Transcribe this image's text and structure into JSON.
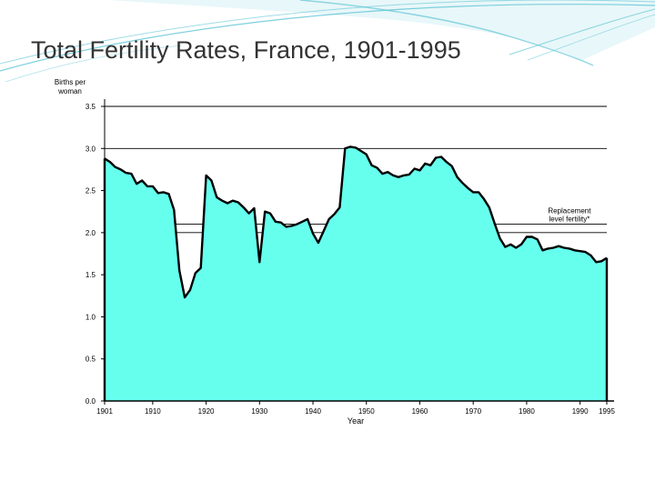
{
  "slide": {
    "title": "Total Fertility Rates, France, 1901-1995",
    "colors": {
      "title": "#333333",
      "swoosh": "#5fc4d6",
      "fill": "#66ffee",
      "line": "#000000"
    }
  },
  "chart_data": {
    "type": "area",
    "title": "",
    "xlabel": "Year",
    "ylabel": "Births per woman",
    "xlim": [
      1901,
      1995
    ],
    "ylim": [
      0,
      3.5
    ],
    "xticks": [
      1901,
      1910,
      1920,
      1930,
      1940,
      1950,
      1960,
      1970,
      1980,
      1990,
      1995
    ],
    "yticks": [
      0.0,
      0.5,
      1.0,
      1.5,
      2.0,
      2.5,
      3.0,
      3.5
    ],
    "ytick_labels": [
      "0.0",
      "0.5",
      "1.0",
      "1.5",
      "2.0",
      "2.5",
      "3.0",
      "3.5"
    ],
    "reference_lines": [
      3.5,
      3.0,
      2.1,
      2.0
    ],
    "annotation": {
      "text": [
        "Replacement",
        "level fertility*"
      ],
      "x": 1988,
      "y": 2.1
    },
    "series": [
      {
        "name": "Total fertility rate",
        "x": [
          1901,
          1902,
          1903,
          1904,
          1905,
          1906,
          1907,
          1908,
          1909,
          1910,
          1911,
          1912,
          1913,
          1914,
          1915,
          1916,
          1917,
          1918,
          1919,
          1920,
          1921,
          1922,
          1923,
          1924,
          1925,
          1926,
          1927,
          1928,
          1929,
          1930,
          1931,
          1932,
          1933,
          1934,
          1935,
          1936,
          1937,
          1938,
          1939,
          1940,
          1941,
          1942,
          1943,
          1944,
          1945,
          1946,
          1947,
          1948,
          1949,
          1950,
          1951,
          1952,
          1953,
          1954,
          1955,
          1956,
          1957,
          1958,
          1959,
          1960,
          1961,
          1962,
          1963,
          1964,
          1965,
          1966,
          1967,
          1968,
          1969,
          1970,
          1971,
          1972,
          1973,
          1974,
          1975,
          1976,
          1977,
          1978,
          1979,
          1980,
          1981,
          1982,
          1983,
          1984,
          1985,
          1986,
          1987,
          1988,
          1989,
          1990,
          1991,
          1992,
          1993,
          1994,
          1995
        ],
        "values": [
          2.88,
          2.84,
          2.78,
          2.75,
          2.71,
          2.7,
          2.58,
          2.62,
          2.55,
          2.55,
          2.47,
          2.48,
          2.46,
          2.27,
          1.55,
          1.23,
          1.32,
          1.52,
          1.58,
          2.68,
          2.62,
          2.42,
          2.38,
          2.35,
          2.38,
          2.36,
          2.3,
          2.23,
          2.29,
          1.65,
          2.25,
          2.23,
          2.13,
          2.12,
          2.07,
          2.08,
          2.1,
          2.13,
          2.16,
          1.99,
          1.88,
          2.02,
          2.16,
          2.22,
          2.3,
          3.0,
          3.02,
          3.01,
          2.97,
          2.93,
          2.8,
          2.77,
          2.7,
          2.72,
          2.68,
          2.66,
          2.68,
          2.69,
          2.76,
          2.74,
          2.82,
          2.8,
          2.89,
          2.9,
          2.84,
          2.79,
          2.66,
          2.59,
          2.53,
          2.48,
          2.48,
          2.4,
          2.3,
          2.11,
          1.93,
          1.83,
          1.86,
          1.82,
          1.86,
          1.95,
          1.95,
          1.92,
          1.79,
          1.81,
          1.82,
          1.84,
          1.82,
          1.81,
          1.79,
          1.78,
          1.77,
          1.73,
          1.65,
          1.66,
          1.7
        ]
      }
    ]
  }
}
